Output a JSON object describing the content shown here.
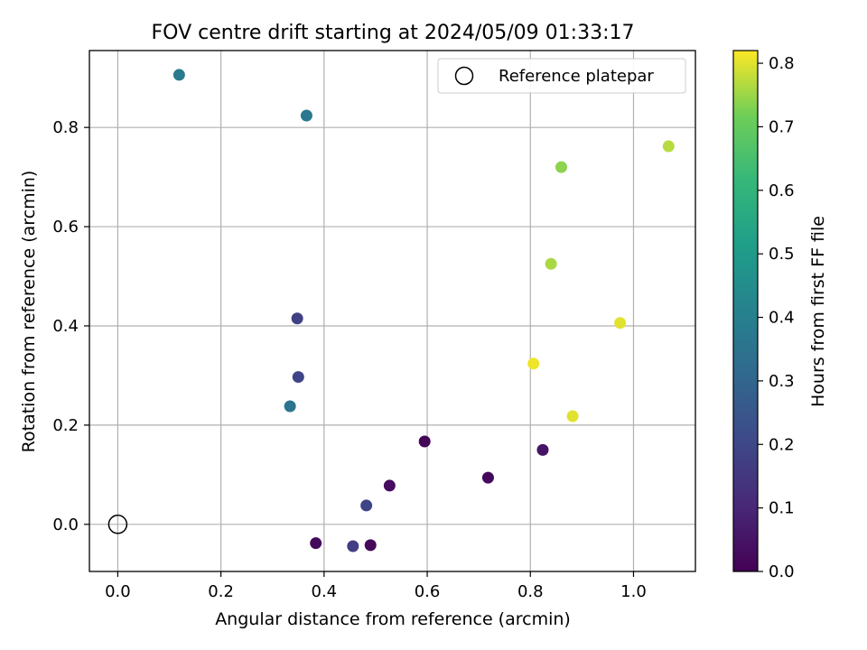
{
  "chart_data": {
    "type": "scatter",
    "title": "FOV centre drift starting at 2024/05/09 01:33:17",
    "xlabel": "Angular distance from reference (arcmin)",
    "ylabel": "Rotation from reference (arcmin)",
    "xlim": [
      -0.055,
      1.12
    ],
    "ylim": [
      -0.095,
      0.955
    ],
    "xticks": [
      0.0,
      0.2,
      0.4,
      0.6,
      0.8,
      1.0
    ],
    "xtick_labels": [
      "0.0",
      "0.2",
      "0.4",
      "0.6",
      "0.8",
      "1.0"
    ],
    "yticks": [
      0.0,
      0.2,
      0.4,
      0.6,
      0.8
    ],
    "ytick_labels": [
      "0.0",
      "0.2",
      "0.4",
      "0.6",
      "0.8"
    ],
    "grid": true,
    "legend": {
      "placement": "top-right",
      "entries": [
        "Reference platepar"
      ]
    },
    "reference_point": {
      "x": 0.0,
      "y": 0.0,
      "marker": "open-circle"
    },
    "colorbar": {
      "label": "Hours from first FF file",
      "colormap": "viridis",
      "range": [
        0.0,
        0.82
      ],
      "ticks": [
        0.0,
        0.1,
        0.2,
        0.3,
        0.4,
        0.5,
        0.6,
        0.7,
        0.8
      ],
      "tick_labels": [
        "0.0",
        "0.1",
        "0.2",
        "0.3",
        "0.4",
        "0.5",
        "0.6",
        "0.7",
        "0.8"
      ]
    },
    "points": [
      {
        "x": 0.384,
        "y": -0.038,
        "hours": 0.02
      },
      {
        "x": 0.49,
        "y": -0.042,
        "hours": 0.02
      },
      {
        "x": 0.527,
        "y": 0.078,
        "hours": 0.03
      },
      {
        "x": 0.595,
        "y": 0.167,
        "hours": 0.01
      },
      {
        "x": 0.718,
        "y": 0.094,
        "hours": 0.02
      },
      {
        "x": 0.824,
        "y": 0.15,
        "hours": 0.05
      },
      {
        "x": 0.456,
        "y": -0.044,
        "hours": 0.17
      },
      {
        "x": 0.482,
        "y": 0.038,
        "hours": 0.19
      },
      {
        "x": 0.348,
        "y": 0.415,
        "hours": 0.18
      },
      {
        "x": 0.35,
        "y": 0.297,
        "hours": 0.19
      },
      {
        "x": 0.334,
        "y": 0.238,
        "hours": 0.36
      },
      {
        "x": 0.366,
        "y": 0.824,
        "hours": 0.37
      },
      {
        "x": 0.119,
        "y": 0.906,
        "hours": 0.38
      },
      {
        "x": 0.86,
        "y": 0.72,
        "hours": 0.74
      },
      {
        "x": 0.84,
        "y": 0.525,
        "hours": 0.76
      },
      {
        "x": 1.068,
        "y": 0.762,
        "hours": 0.77
      },
      {
        "x": 0.974,
        "y": 0.406,
        "hours": 0.8
      },
      {
        "x": 0.806,
        "y": 0.324,
        "hours": 0.81
      },
      {
        "x": 0.882,
        "y": 0.218,
        "hours": 0.8
      }
    ]
  }
}
